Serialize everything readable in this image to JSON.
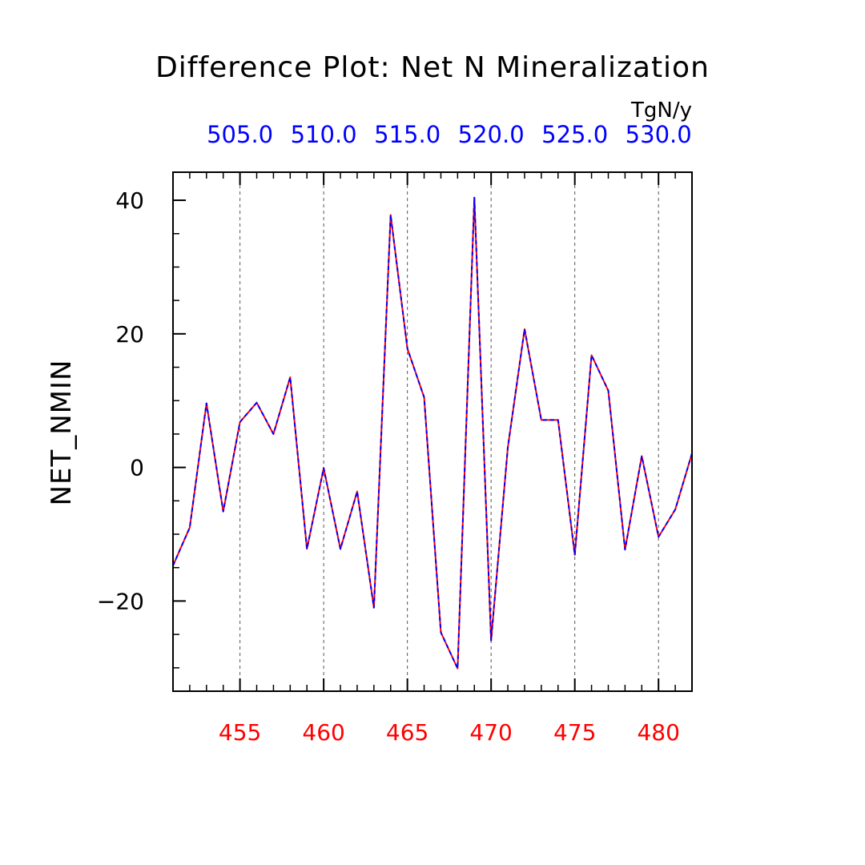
{
  "chart_data": {
    "type": "line",
    "title": "Difference Plot: Net N Mineralization",
    "units": "TgN/y",
    "ylabel": "NET_NMIN",
    "xlim": [
      451,
      482
    ],
    "ylim": [
      -33.5,
      44.2
    ],
    "x_ticks": [
      455,
      460,
      465,
      470,
      475,
      480
    ],
    "x_tick_labels": [
      "455",
      "460",
      "465",
      "470",
      "475",
      "480"
    ],
    "y_ticks": [
      -20,
      0,
      20,
      40
    ],
    "y_tick_labels": [
      "−20",
      "0",
      "20",
      "40"
    ],
    "top_axis": {
      "ticks": [
        505.0,
        510.0,
        515.0,
        520.0,
        525.0,
        530.0
      ],
      "tick_labels": [
        "505.0",
        "510.0",
        "515.0",
        "520.0",
        "525.0",
        "530.0"
      ]
    },
    "grid": "vertical-dashed",
    "x": [
      451,
      452,
      453,
      454,
      455,
      456,
      457,
      458,
      459,
      460,
      461,
      462,
      463,
      464,
      465,
      466,
      467,
      468,
      469,
      470,
      471,
      472,
      473,
      474,
      475,
      476,
      477,
      478,
      479,
      480,
      481,
      482
    ],
    "series": [
      {
        "values": [
          -14.7,
          -9.0,
          9.6,
          -6.6,
          6.8,
          9.7,
          5.0,
          13.5,
          -12.2,
          -0.1,
          -12.2,
          -3.6,
          -21.0,
          37.8,
          17.8,
          10.5,
          -24.7,
          -30.1,
          40.4,
          -25.9,
          3.0,
          20.7,
          7.1,
          7.1,
          -13.1,
          16.8,
          11.5,
          -12.3,
          1.7,
          -10.4,
          -6.3,
          2.1
        ],
        "color": "#ff0000",
        "style": "solid"
      },
      {
        "values": [
          -14.7,
          -9.0,
          9.6,
          -6.6,
          6.8,
          9.7,
          5.0,
          13.5,
          -12.2,
          -0.1,
          -12.2,
          -3.6,
          -21.0,
          37.8,
          17.8,
          10.5,
          -24.7,
          -30.1,
          40.4,
          -25.9,
          3.0,
          20.7,
          7.1,
          7.1,
          -13.1,
          16.8,
          11.5,
          -12.3,
          1.7,
          -10.4,
          -6.3,
          2.1
        ],
        "color": "#0000ff",
        "style": "dashed"
      }
    ],
    "colors": {
      "bottom_axis_labels": "#ff0000",
      "top_axis_labels": "#0000ff",
      "frame": "#000000",
      "grid": "#555555"
    }
  }
}
